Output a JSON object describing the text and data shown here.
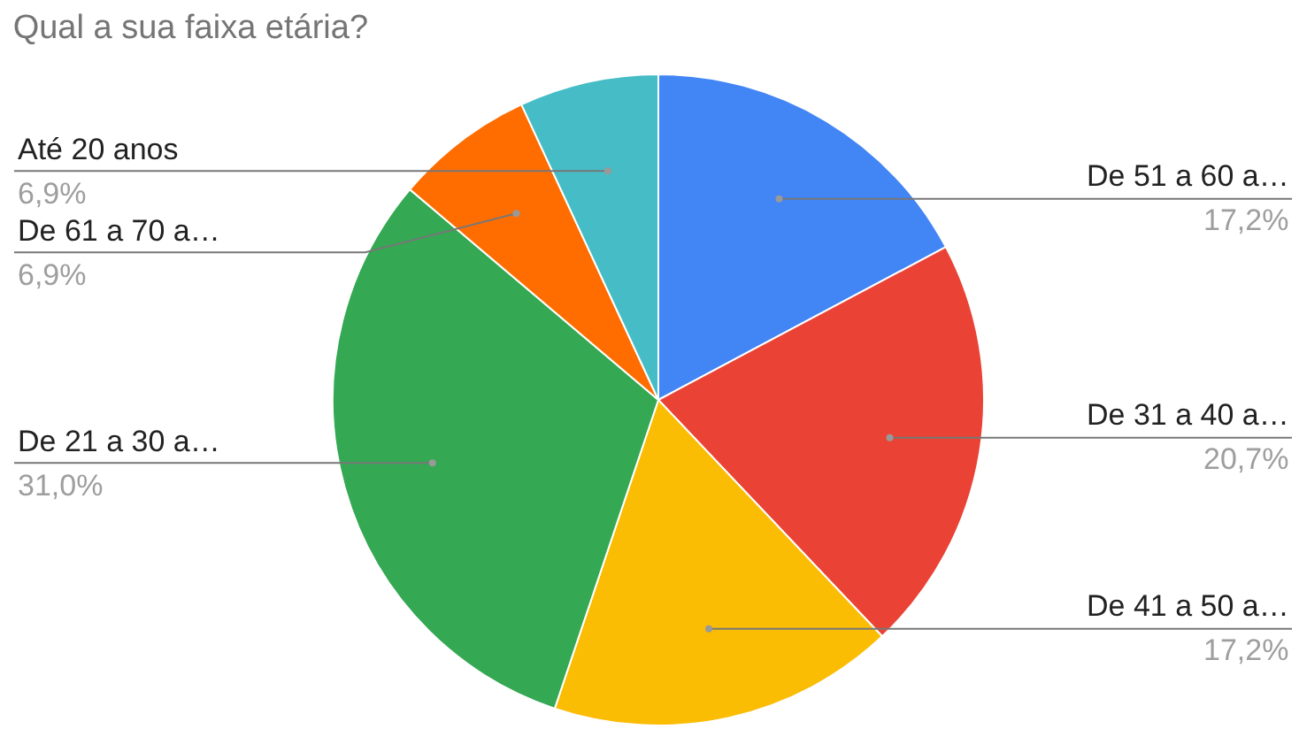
{
  "chart_data": {
    "type": "pie",
    "title": "Qual a sua faixa etária?",
    "categories": [
      "De 51 a 60 a…",
      "De 31 a 40 a…",
      "De 41 a 50 a…",
      "De 21 a 30 a…",
      "De 61 a 70 a…",
      "Até 20 anos"
    ],
    "values": [
      17.2,
      20.7,
      17.2,
      31.0,
      6.9,
      6.9
    ],
    "value_labels": [
      "17,2%",
      "20,7%",
      "17,2%",
      "31,0%",
      "6,9%",
      "6,9%"
    ],
    "colors": [
      "#4285f4",
      "#ea4335",
      "#fbbc04",
      "#34a853",
      "#ff6d01",
      "#46bdc6"
    ],
    "legend": false
  }
}
